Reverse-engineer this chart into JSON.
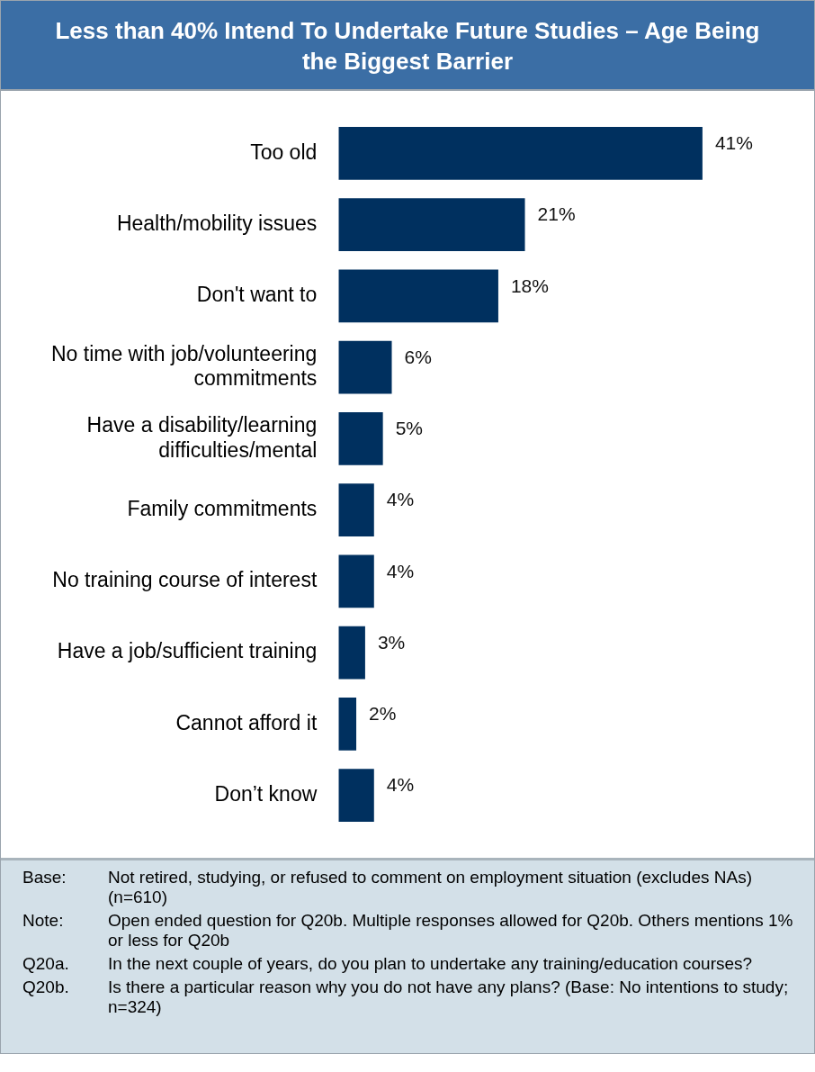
{
  "chart_data": {
    "type": "bar",
    "orientation": "horizontal",
    "title": "Less than 40% Intend To Undertake Future Studies – Age Being the Biggest Barrier",
    "categories": [
      "Too old",
      "Health/mobility issues",
      "Don't want to",
      "No time with job/volunteering commitments",
      "Have a disability/learning difficulties/mental",
      "Family commitments",
      "No training course of interest",
      "Have a job/sufficient training",
      "Cannot afford it",
      "Don’t know"
    ],
    "values": [
      41,
      21,
      18,
      6,
      5,
      4,
      4,
      3,
      2,
      4
    ],
    "value_labels": [
      "41%",
      "21%",
      "18%",
      "6%",
      "5%",
      "4%",
      "4%",
      "3%",
      "2%",
      "4%"
    ],
    "color": "#00305f",
    "annotations": [
      "Base: Not retired, studying, or refused to comment on employment situation (excludes NAs) (n=610)",
      "Note: Open ended question for Q20b. Multiple responses allowed for Q20b. Others mentions 1% or less for Q20b",
      "Q20a. In the next couple of years, do you plan to undertake any training/education courses?",
      "Q20b. Is there a particular reason why you do not have any plans? (Base: No intentions to study; n=324)"
    ]
  }
}
